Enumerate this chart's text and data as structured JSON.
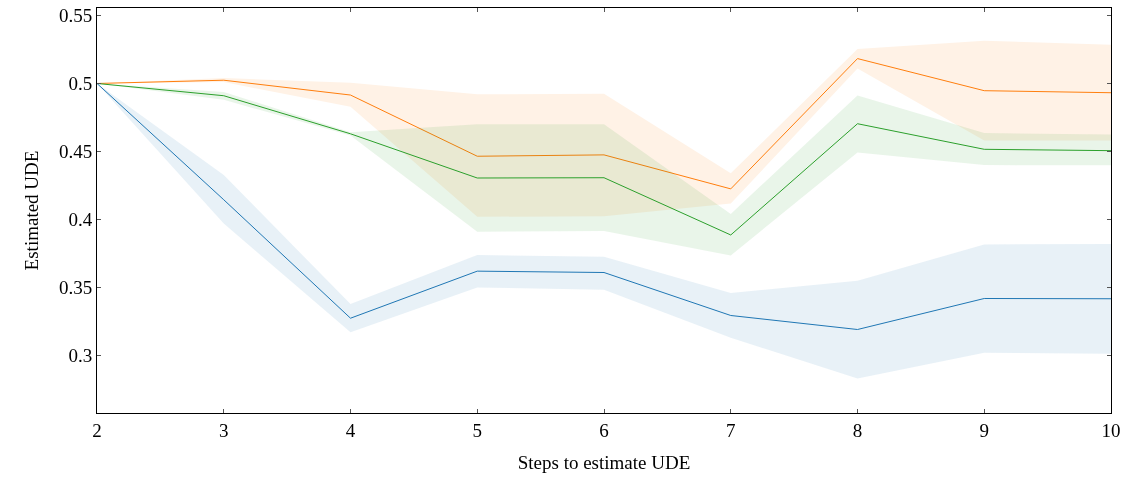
{
  "chart_data": {
    "type": "line",
    "xlabel": "Steps to estimate UDE",
    "ylabel": "Estimated UDE",
    "x": [
      2,
      3,
      4,
      5,
      6,
      7,
      8,
      9,
      10
    ],
    "xlim": [
      2,
      10
    ],
    "xticks": [
      2,
      3,
      4,
      5,
      6,
      7,
      8,
      9,
      10
    ],
    "ylim": [
      0.2577,
      0.5555
    ],
    "yticks": [
      0.3,
      0.35,
      0.4,
      0.45,
      0.5,
      0.55
    ],
    "marker": "none",
    "line_style": "solid",
    "series": [
      {
        "color": "#1f77b4",
        "values": [
          0.5,
          0.4145,
          0.3274,
          0.362,
          0.361,
          0.3294,
          0.3191,
          0.3419,
          0.3417
        ],
        "lower": [
          0.5,
          0.397,
          0.317,
          0.35,
          0.3484,
          0.313,
          0.283,
          0.302,
          0.3013
        ],
        "upper": [
          0.5,
          0.4327,
          0.3378,
          0.3738,
          0.3726,
          0.3459,
          0.355,
          0.3816,
          0.382
        ]
      },
      {
        "color": "#ff7f0e",
        "values": [
          0.5,
          0.5024,
          0.4915,
          0.4465,
          0.4475,
          0.4225,
          0.5183,
          0.4947,
          0.4932
        ],
        "lower": [
          0.5,
          0.501,
          0.4828,
          0.402,
          0.4024,
          0.4117,
          0.511,
          0.4581,
          0.4581
        ],
        "upper": [
          0.5,
          0.504,
          0.5005,
          0.492,
          0.4925,
          0.434,
          0.5253,
          0.5314,
          0.5284
        ]
      },
      {
        "color": "#2ca02c",
        "values": [
          0.5,
          0.491,
          0.463,
          0.4305,
          0.4307,
          0.3886,
          0.4704,
          0.4516,
          0.4506
        ],
        "lower": [
          0.5,
          0.488,
          0.4617,
          0.391,
          0.3915,
          0.3735,
          0.4493,
          0.44,
          0.4398
        ],
        "upper": [
          0.5,
          0.4937,
          0.4642,
          0.47,
          0.47,
          0.4041,
          0.4912,
          0.4636,
          0.4624
        ]
      }
    ]
  }
}
